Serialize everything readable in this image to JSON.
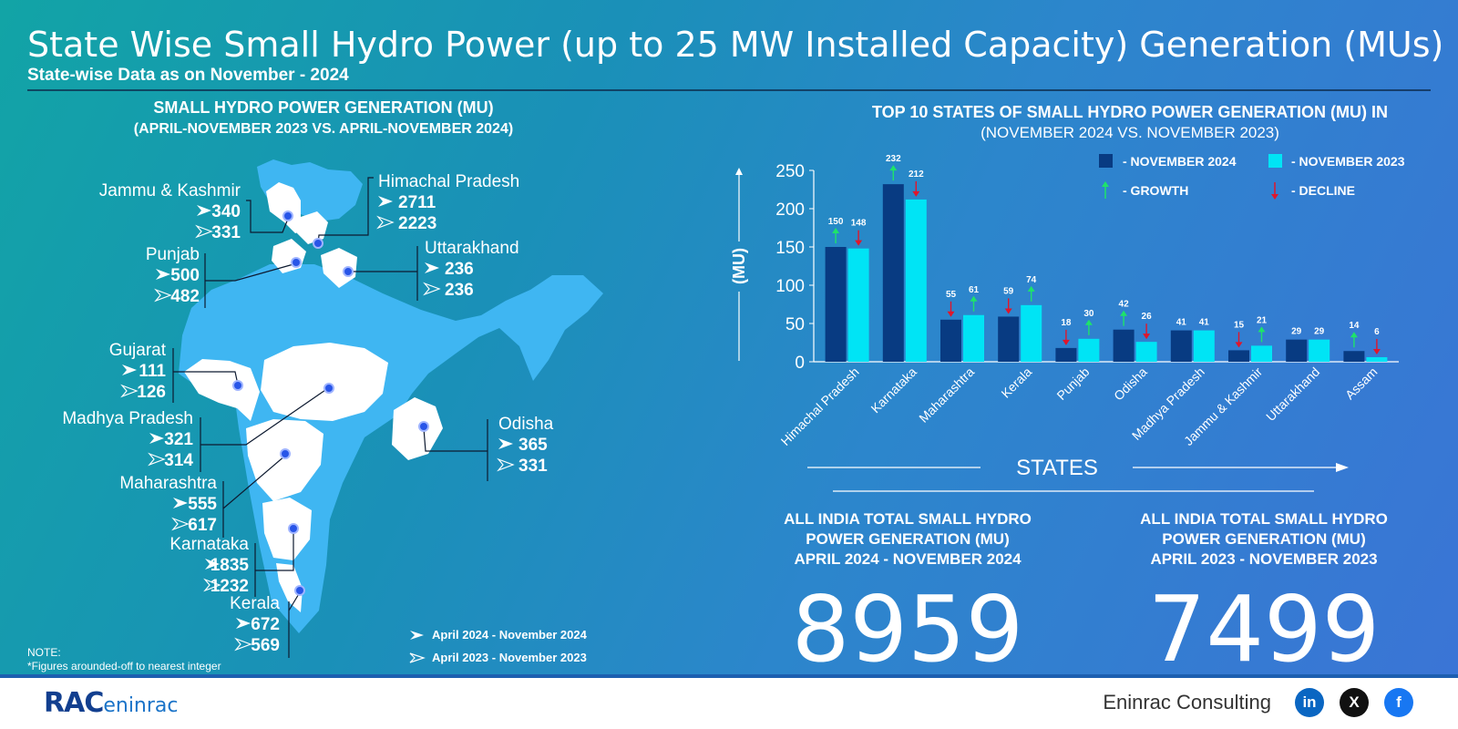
{
  "header": {
    "title": "State Wise Small Hydro Power (up to 25 MW Installed Capacity) Generation (MUs)",
    "subtitle": "State-wise Data as on November - 2024"
  },
  "map_panel": {
    "heading_line1": "SMALL HYDRO POWER GENERATION (MU)",
    "heading_line2": "(APRIL-NOVEMBER 2023 VS. APRIL-NOVEMBER 2024)",
    "states": [
      {
        "name": "Jammu & Kashmir",
        "v2024": "340",
        "v2023": "331"
      },
      {
        "name": "Himachal Pradesh",
        "v2024": "2711",
        "v2023": "2223"
      },
      {
        "name": "Punjab",
        "v2024": "500",
        "v2023": "482"
      },
      {
        "name": "Uttarakhand",
        "v2024": "236",
        "v2023": "236"
      },
      {
        "name": "Gujarat",
        "v2024": "111",
        "v2023": "126"
      },
      {
        "name": "Madhya Pradesh",
        "v2024": "321",
        "v2023": "314"
      },
      {
        "name": "Odisha",
        "v2024": "365",
        "v2023": "331"
      },
      {
        "name": "Maharashtra",
        "v2024": "555",
        "v2023": "617"
      },
      {
        "name": "Karnataka",
        "v2024": "1835",
        "v2023": "1232"
      },
      {
        "name": "Kerala",
        "v2024": "672",
        "v2023": "569"
      }
    ],
    "legend": {
      "filled": "April 2024 - November 2024",
      "outline": "April 2023 - November 2023"
    },
    "note_label": "NOTE:",
    "note_text": "*Figures arounded-off to nearest integer"
  },
  "chart_panel": {
    "heading_line1": "TOP 10 STATES OF SMALL HYDRO POWER GENERATION (MU) IN",
    "heading_line2": "(NOVEMBER 2024 VS. NOVEMBER 2023)",
    "legend": {
      "series_a": "- NOVEMBER 2024",
      "series_b": "- NOVEMBER 2023",
      "growth": "- GROWTH",
      "decline": "- DECLINE"
    }
  },
  "chart_data": {
    "type": "bar",
    "title": "TOP 10 STATES OF SMALL HYDRO POWER GENERATION (MU) IN",
    "subtitle": "(NOVEMBER 2024 VS. NOVEMBER 2023)",
    "xlabel": "STATES",
    "ylabel": "(MU)",
    "categories": [
      "Himachal Pradesh",
      "Karnataka",
      "Maharashtra",
      "Kerala",
      "Punjab",
      "Odisha",
      "Madhya Pradesh",
      "Jammu & Kashmir",
      "Uttarakhand",
      "Assam"
    ],
    "series": [
      {
        "name": "NOVEMBER 2024",
        "values": [
          150,
          232,
          55,
          59,
          18,
          42,
          41,
          15,
          29,
          14
        ],
        "color": "#083b82",
        "trend": [
          "growth",
          "growth",
          "decline",
          "decline",
          "decline",
          "growth",
          "none",
          "decline",
          "none",
          "growth"
        ]
      },
      {
        "name": "NOVEMBER 2023",
        "values": [
          148,
          212,
          61,
          74,
          30,
          26,
          41,
          21,
          29,
          6
        ],
        "color": "#00e4f5",
        "trend": [
          "decline",
          "decline",
          "growth",
          "growth",
          "growth",
          "decline",
          "none",
          "growth",
          "none",
          "decline"
        ]
      }
    ],
    "ylim": [
      0,
      250
    ],
    "yticks": [
      "0",
      "50",
      "100",
      "150",
      "200",
      "250"
    ],
    "growth_color": "#1ee36a",
    "decline_color": "#e0162b",
    "legend_position": "top-right",
    "grid": false
  },
  "totals": {
    "left_label": [
      "ALL INDIA TOTAL SMALL HYDRO",
      "POWER GENERATION (MU)",
      "APRIL 2024 - NOVEMBER 2024"
    ],
    "left_value": "8959",
    "right_label": [
      "ALL INDIA TOTAL SMALL HYDRO",
      "POWER GENERATION (MU)",
      "APRIL 2023 - NOVEMBER 2023"
    ],
    "right_value": "7499"
  },
  "footer": {
    "logo_main": "RAC",
    "logo_sub": "eninrac",
    "company": "Eninrac Consulting",
    "social": [
      {
        "icon": "linkedin-icon",
        "text": "in",
        "color": "#0a66c2"
      },
      {
        "icon": "x-icon",
        "text": "X",
        "color": "#111111"
      },
      {
        "icon": "facebook-icon",
        "text": "f",
        "color": "#1877f2"
      }
    ]
  }
}
